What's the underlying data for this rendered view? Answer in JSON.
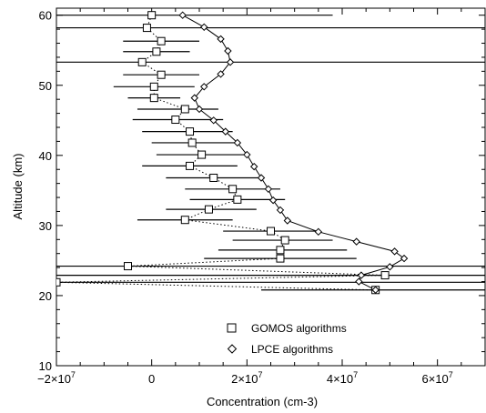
{
  "chart_data": {
    "type": "scatter",
    "xlabel": "Concentration (cm-3)",
    "ylabel": "Altitude (km)",
    "xlim": [
      -20000000,
      70000000
    ],
    "ylim": [
      10,
      61
    ],
    "grid": false,
    "legend_position": "bottom-right",
    "x_ticks": [
      {
        "value": -20000000,
        "mantissa": "−2×10",
        "exp": "7"
      },
      {
        "value": 0,
        "mantissa": "0",
        "exp": ""
      },
      {
        "value": 20000000,
        "mantissa": "2×10",
        "exp": "7"
      },
      {
        "value": 40000000,
        "mantissa": "4×10",
        "exp": "7"
      },
      {
        "value": 60000000,
        "mantissa": "6×10",
        "exp": "7"
      }
    ],
    "y_ticks": [
      {
        "value": 10,
        "label": "10"
      },
      {
        "value": 20,
        "label": "20"
      },
      {
        "value": 30,
        "label": "30"
      },
      {
        "value": 40,
        "label": "40"
      },
      {
        "value": 50,
        "label": "50"
      },
      {
        "value": 60,
        "label": "60"
      }
    ],
    "series": [
      {
        "name": "GOMOS algorithms",
        "marker": "square",
        "line": "dotted",
        "points": [
          {
            "alt": 60.0,
            "x": 0,
            "xmin": -21000000,
            "xmax": 38000000
          },
          {
            "alt": 58.2,
            "x": -1000000,
            "xmin": -20000000,
            "xmax": 70000000
          },
          {
            "alt": 56.3,
            "x": 2000000,
            "xmin": -6000000,
            "xmax": 10000000
          },
          {
            "alt": 54.8,
            "x": 1000000,
            "xmin": -6000000,
            "xmax": 8000000
          },
          {
            "alt": 53.3,
            "x": -2000000,
            "xmin": -20000000,
            "xmax": 70000000
          },
          {
            "alt": 51.5,
            "x": 2000000,
            "xmin": -6000000,
            "xmax": 10000000
          },
          {
            "alt": 49.8,
            "x": 500000,
            "xmin": -8000000,
            "xmax": 9000000
          },
          {
            "alt": 48.2,
            "x": 500000,
            "xmin": -5000000,
            "xmax": 6000000
          },
          {
            "alt": 46.6,
            "x": 7000000,
            "xmin": -3000000,
            "xmax": 14000000
          },
          {
            "alt": 45.1,
            "x": 5000000,
            "xmin": -4000000,
            "xmax": 15000000
          },
          {
            "alt": 43.4,
            "x": 8000000,
            "xmin": -2000000,
            "xmax": 17000000
          },
          {
            "alt": 41.8,
            "x": 8500000,
            "xmin": 0,
            "xmax": 18000000
          },
          {
            "alt": 40.1,
            "x": 10500000,
            "xmin": 1000000,
            "xmax": 20000000
          },
          {
            "alt": 38.5,
            "x": 8000000,
            "xmin": -2000000,
            "xmax": 18000000
          },
          {
            "alt": 36.8,
            "x": 13000000,
            "xmin": 3000000,
            "xmax": 23000000
          },
          {
            "alt": 35.2,
            "x": 17000000,
            "xmin": 7000000,
            "xmax": 27000000
          },
          {
            "alt": 33.7,
            "x": 18000000,
            "xmin": 8000000,
            "xmax": 28000000
          },
          {
            "alt": 32.3,
            "x": 12000000,
            "xmin": 3000000,
            "xmax": 22000000
          },
          {
            "alt": 30.8,
            "x": 7000000,
            "xmin": -3000000,
            "xmax": 17000000
          },
          {
            "alt": 29.2,
            "x": 25000000,
            "xmin": 15000000,
            "xmax": 35000000
          },
          {
            "alt": 27.9,
            "x": 28000000,
            "xmin": 17000000,
            "xmax": 38000000
          },
          {
            "alt": 26.5,
            "x": 27000000,
            "xmin": 14000000,
            "xmax": 41000000
          },
          {
            "alt": 25.3,
            "x": 27000000,
            "xmin": 11000000,
            "xmax": 43000000
          },
          {
            "alt": 24.2,
            "x": -5000000,
            "xmin": -20000000,
            "xmax": 70000000
          },
          {
            "alt": 22.9,
            "x": 49000000,
            "xmin": -20000000,
            "xmax": 70000000
          },
          {
            "alt": 21.9,
            "x": -20000000,
            "xmin": -20000000,
            "xmax": 70000000
          },
          {
            "alt": 20.8,
            "x": 47000000,
            "xmin": 23000000,
            "xmax": 70000000
          }
        ]
      },
      {
        "name": "LPCE algorithms",
        "marker": "diamond",
        "line": "solid",
        "points": [
          {
            "alt": 60.0,
            "x": 6500000
          },
          {
            "alt": 58.3,
            "x": 11000000
          },
          {
            "alt": 56.6,
            "x": 14500000
          },
          {
            "alt": 54.9,
            "x": 16000000
          },
          {
            "alt": 53.3,
            "x": 16500000
          },
          {
            "alt": 51.6,
            "x": 14500000
          },
          {
            "alt": 49.8,
            "x": 11000000
          },
          {
            "alt": 48.2,
            "x": 9000000
          },
          {
            "alt": 46.6,
            "x": 10000000
          },
          {
            "alt": 45.0,
            "x": 13000000
          },
          {
            "alt": 43.4,
            "x": 15500000
          },
          {
            "alt": 41.8,
            "x": 18000000
          },
          {
            "alt": 40.1,
            "x": 20000000
          },
          {
            "alt": 38.4,
            "x": 21500000
          },
          {
            "alt": 36.8,
            "x": 23000000
          },
          {
            "alt": 35.2,
            "x": 24500000
          },
          {
            "alt": 33.6,
            "x": 25500000
          },
          {
            "alt": 32.2,
            "x": 27000000
          },
          {
            "alt": 30.7,
            "x": 28500000
          },
          {
            "alt": 29.1,
            "x": 35000000
          },
          {
            "alt": 27.7,
            "x": 43000000
          },
          {
            "alt": 26.3,
            "x": 51000000
          },
          {
            "alt": 25.3,
            "x": 53000000
          },
          {
            "alt": 24.1,
            "x": 50000000
          },
          {
            "alt": 22.9,
            "x": 44000000
          },
          {
            "alt": 22.0,
            "x": 43500000
          },
          {
            "alt": 20.8,
            "x": 47000000
          }
        ]
      }
    ]
  }
}
